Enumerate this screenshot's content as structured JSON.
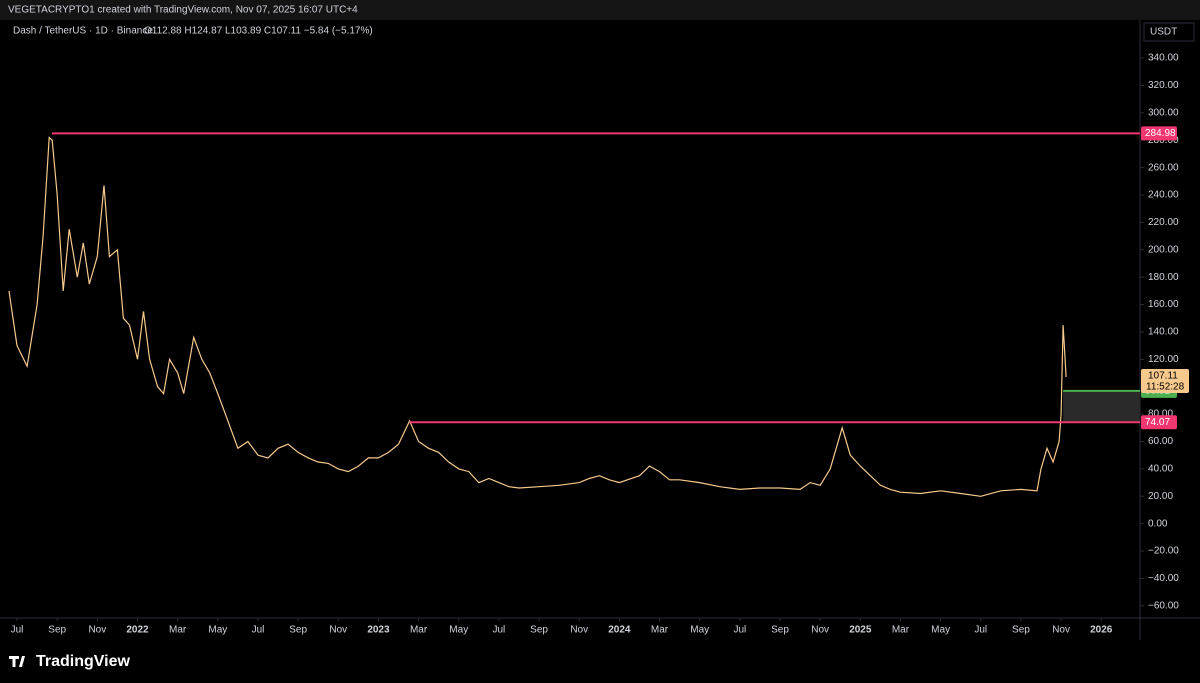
{
  "header": "VEGETACRYPTO1 created with TradingView.com, Nov 07, 2025 16:07 UTC+4",
  "chart_data": {
    "type": "line",
    "symbol": "Dash / TetherUS · 1D · Binance",
    "ohlc": "O112.88  H124.87  L103.89  C107.11  −5.84 (−5.17%)",
    "currency": "USDT",
    "color": "#f7c98c",
    "xlim": [
      -0.45,
      55.93
    ],
    "ylim": [
      -68.9,
      367.8
    ],
    "x": [
      -0.4,
      0,
      0.5,
      1.0,
      1.3,
      1.6,
      1.75,
      2.0,
      2.3,
      2.6,
      3.0,
      3.3,
      3.6,
      4.0,
      4.33,
      4.6,
      5.0,
      5.3,
      5.6,
      6.0,
      6.3,
      6.6,
      7.0,
      7.3,
      7.6,
      8.0,
      8.3,
      8.8,
      9.2,
      9.6,
      10.0,
      10.5,
      11.0,
      11.5,
      12.0,
      12.5,
      13.0,
      13.5,
      14.0,
      14.5,
      15.0,
      15.5,
      16.0,
      16.5,
      17.0,
      17.5,
      18.0,
      18.5,
      19.0,
      19.55,
      20.0,
      20.5,
      21.0,
      21.5,
      22.0,
      22.5,
      23.0,
      23.5,
      24.0,
      24.5,
      25.0,
      26.0,
      27.0,
      28.0,
      28.5,
      29.0,
      29.5,
      30.0,
      31.0,
      31.5,
      32.0,
      32.5,
      33.0,
      34.0,
      35.0,
      36.0,
      37.0,
      38.0,
      39.0,
      39.5,
      40.0,
      40.5,
      41.1,
      41.5,
      42.0,
      42.5,
      43.0,
      43.5,
      44.0,
      45.0,
      46.0,
      47.0,
      48.0,
      49.0,
      50.0,
      50.8,
      51.0,
      51.3,
      51.6,
      51.9,
      52.0,
      52.1,
      52.2,
      52.25
    ],
    "values": [
      170,
      130,
      115,
      160,
      210,
      282,
      280,
      240,
      170,
      215,
      180,
      205,
      175,
      195,
      247,
      195,
      200,
      150,
      145,
      120,
      155,
      120,
      100,
      95,
      120,
      110,
      95,
      136,
      120,
      110,
      95,
      75,
      55,
      60,
      50,
      48,
      55,
      58,
      52,
      48,
      45,
      44,
      40,
      38,
      42,
      48,
      48,
      52,
      58,
      75,
      60,
      55,
      52,
      45,
      40,
      38,
      30,
      33,
      30,
      27,
      26,
      27,
      28,
      30,
      33,
      35,
      32,
      30,
      35,
      42,
      38,
      32,
      32,
      30,
      27,
      25,
      26,
      26,
      25,
      30,
      28,
      40,
      70,
      50,
      42,
      35,
      28,
      25,
      23,
      22,
      24,
      22,
      20,
      24,
      25,
      24,
      40,
      55,
      45,
      60,
      80,
      145,
      120,
      107.11
    ],
    "xticks": [
      {
        "value": 0,
        "label": "Jul"
      },
      {
        "value": 2,
        "label": "Sep"
      },
      {
        "value": 4,
        "label": "Nov"
      },
      {
        "value": 6,
        "label": "2022"
      },
      {
        "value": 8,
        "label": "Mar"
      },
      {
        "value": 10,
        "label": "May"
      },
      {
        "value": 12,
        "label": "Jul"
      },
      {
        "value": 14,
        "label": "Sep"
      },
      {
        "value": 16,
        "label": "Nov"
      },
      {
        "value": 18,
        "label": "2023"
      },
      {
        "value": 20,
        "label": "Mar"
      },
      {
        "value": 22,
        "label": "May"
      },
      {
        "value": 24,
        "label": "Jul"
      },
      {
        "value": 26,
        "label": "Sep"
      },
      {
        "value": 28,
        "label": "Nov"
      },
      {
        "value": 30,
        "label": "2024"
      },
      {
        "value": 32,
        "label": "Mar"
      },
      {
        "value": 34,
        "label": "May"
      },
      {
        "value": 36,
        "label": "Jul"
      },
      {
        "value": 38,
        "label": "Sep"
      },
      {
        "value": 40,
        "label": "Nov"
      },
      {
        "value": 42,
        "label": "2025"
      },
      {
        "value": 44,
        "label": "Mar"
      },
      {
        "value": 46,
        "label": "May"
      },
      {
        "value": 48,
        "label": "Jul"
      },
      {
        "value": 50,
        "label": "Sep"
      },
      {
        "value": 52,
        "label": "Nov"
      },
      {
        "value": 54,
        "label": "2026"
      }
    ],
    "yticks": [
      {
        "value": 340,
        "label": "340.00"
      },
      {
        "value": 320,
        "label": "320.00"
      },
      {
        "value": 300,
        "label": "300.00"
      },
      {
        "value": 280,
        "label": "280.00"
      },
      {
        "value": 260,
        "label": "260.00"
      },
      {
        "value": 240,
        "label": "240.00"
      },
      {
        "value": 220,
        "label": "220.00"
      },
      {
        "value": 200,
        "label": "200.00"
      },
      {
        "value": 180,
        "label": "180.00"
      },
      {
        "value": 160,
        "label": "160.00"
      },
      {
        "value": 140,
        "label": "140.00"
      },
      {
        "value": 120,
        "label": "120.00"
      },
      {
        "value": 80,
        "label": "80.00"
      },
      {
        "value": 60,
        "label": "60.00"
      },
      {
        "value": 40,
        "label": "40.00"
      },
      {
        "value": 20,
        "label": "20.00"
      },
      {
        "value": 0,
        "label": "0.00"
      },
      {
        "value": -20,
        "label": "−20.00"
      },
      {
        "value": -40,
        "label": "−40.00"
      },
      {
        "value": -60,
        "label": "−60.00"
      }
    ],
    "levels": [
      {
        "value": 284.98,
        "color": "#f23670",
        "start_x": 1.74
      },
      {
        "value": 74.07,
        "color": "#f23670",
        "start_x": 19.55
      },
      {
        "value": 96.92,
        "color": "#4caf50",
        "start_x": 52.1
      }
    ],
    "last_price": {
      "value": 107.11,
      "countdown": "11:52:28",
      "color": "#f7c98c"
    }
  },
  "footer": "TradingView"
}
